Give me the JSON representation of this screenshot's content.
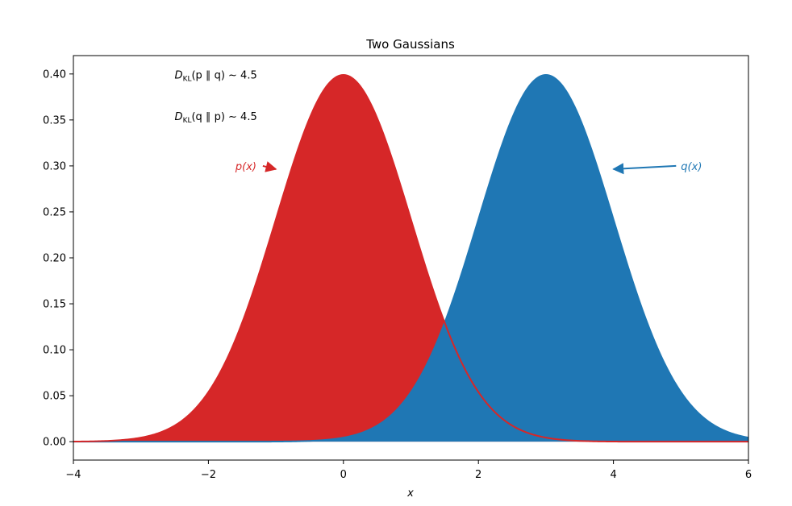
{
  "chart_data": {
    "type": "area",
    "title": "Two Gaussians",
    "xlabel": "x",
    "ylabel": "",
    "xlim": [
      -4,
      6
    ],
    "ylim": [
      -0.02,
      0.42
    ],
    "x_ticks": [
      -4,
      -2,
      0,
      2,
      4,
      6
    ],
    "x_tick_labels": [
      "−4",
      "−2",
      "0",
      "2",
      "4",
      "6"
    ],
    "y_ticks": [
      0.0,
      0.05,
      0.1,
      0.15,
      0.2,
      0.25,
      0.3,
      0.35,
      0.4
    ],
    "y_tick_labels": [
      "0.00",
      "0.05",
      "0.10",
      "0.15",
      "0.20",
      "0.25",
      "0.30",
      "0.35",
      "0.40"
    ],
    "grid": false,
    "series": [
      {
        "name": "p(x)",
        "distribution": "normal",
        "mean": 0,
        "std": 1,
        "color": "#d62728",
        "peak": 0.399
      },
      {
        "name": "q(x)",
        "distribution": "normal",
        "mean": 3,
        "std": 1,
        "color": "#1f77b4",
        "peak": 0.399
      }
    ],
    "annotations": [
      {
        "text_main": "D",
        "text_sub": "KL",
        "text_rest": "(p ∥ q) ∼ 4.5",
        "x": -2.5,
        "y": 0.395
      },
      {
        "text_main": "D",
        "text_sub": "KL",
        "text_rest": "(q ∥ p) ∼ 4.5",
        "x": -2.5,
        "y": 0.35
      },
      {
        "text": "p(x)",
        "label_x": -1.6,
        "label_y": 0.3,
        "arrow_x": -1.0,
        "arrow_y": 0.3,
        "color": "#d62728"
      },
      {
        "text": "q(x)",
        "label_x": 5.0,
        "label_y": 0.3,
        "arrow_x": 4.0,
        "arrow_y": 0.3,
        "color": "#1f77b4"
      }
    ]
  }
}
